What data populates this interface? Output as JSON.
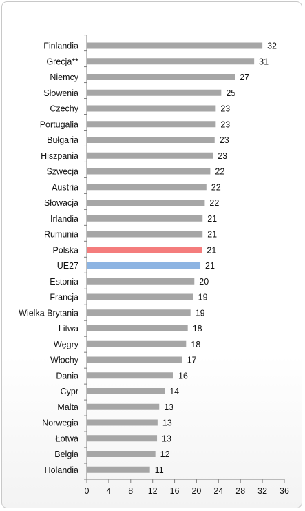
{
  "chart_data": {
    "type": "bar",
    "orientation": "horizontal",
    "title": "",
    "xlabel": "",
    "ylabel": "",
    "xlim": [
      0,
      36
    ],
    "x_ticks": [
      0,
      4,
      8,
      12,
      16,
      20,
      24,
      28,
      32,
      36
    ],
    "grid": false,
    "legend": "none",
    "categories": [
      "Finlandia",
      "Grecja**",
      "Niemcy",
      "Słowenia",
      "Czechy",
      "Portugalia",
      "Bułgaria",
      "Hiszpania",
      "Szwecja",
      "Austria",
      "Słowacja",
      "Irlandia",
      "Rumunia",
      "Polska",
      "UE27",
      "Estonia",
      "Francja",
      "Wielka Brytania",
      "Litwa",
      "Węgry",
      "Włochy",
      "Dania",
      "Cypr",
      "Malta",
      "Norwegia",
      "Łotwa",
      "Belgia",
      "Holandia"
    ],
    "values": [
      32,
      31,
      27,
      25,
      23,
      23,
      23,
      23,
      22,
      22,
      22,
      21,
      21,
      21,
      21,
      20,
      19,
      19,
      18,
      18,
      17,
      16,
      14,
      13,
      13,
      13,
      12,
      11
    ],
    "bar_values": [
      32,
      30.5,
      27,
      24.5,
      23.5,
      23.5,
      23.3,
      23,
      22.5,
      21.8,
      21.5,
      21.1,
      21.1,
      21,
      20.7,
      19.6,
      19.4,
      18.9,
      18.4,
      18.1,
      17.4,
      15.8,
      14.2,
      13.2,
      12.9,
      12.8,
      12.5,
      11.5
    ],
    "colors": {
      "default": "#a6a6a6",
      "highlight": {
        "Polska": "#f47c7c",
        "UE27": "#8db4e2"
      },
      "axis": "#7f7f7f",
      "background": "#ffffff",
      "frame_border": "#c8c8c8"
    }
  }
}
